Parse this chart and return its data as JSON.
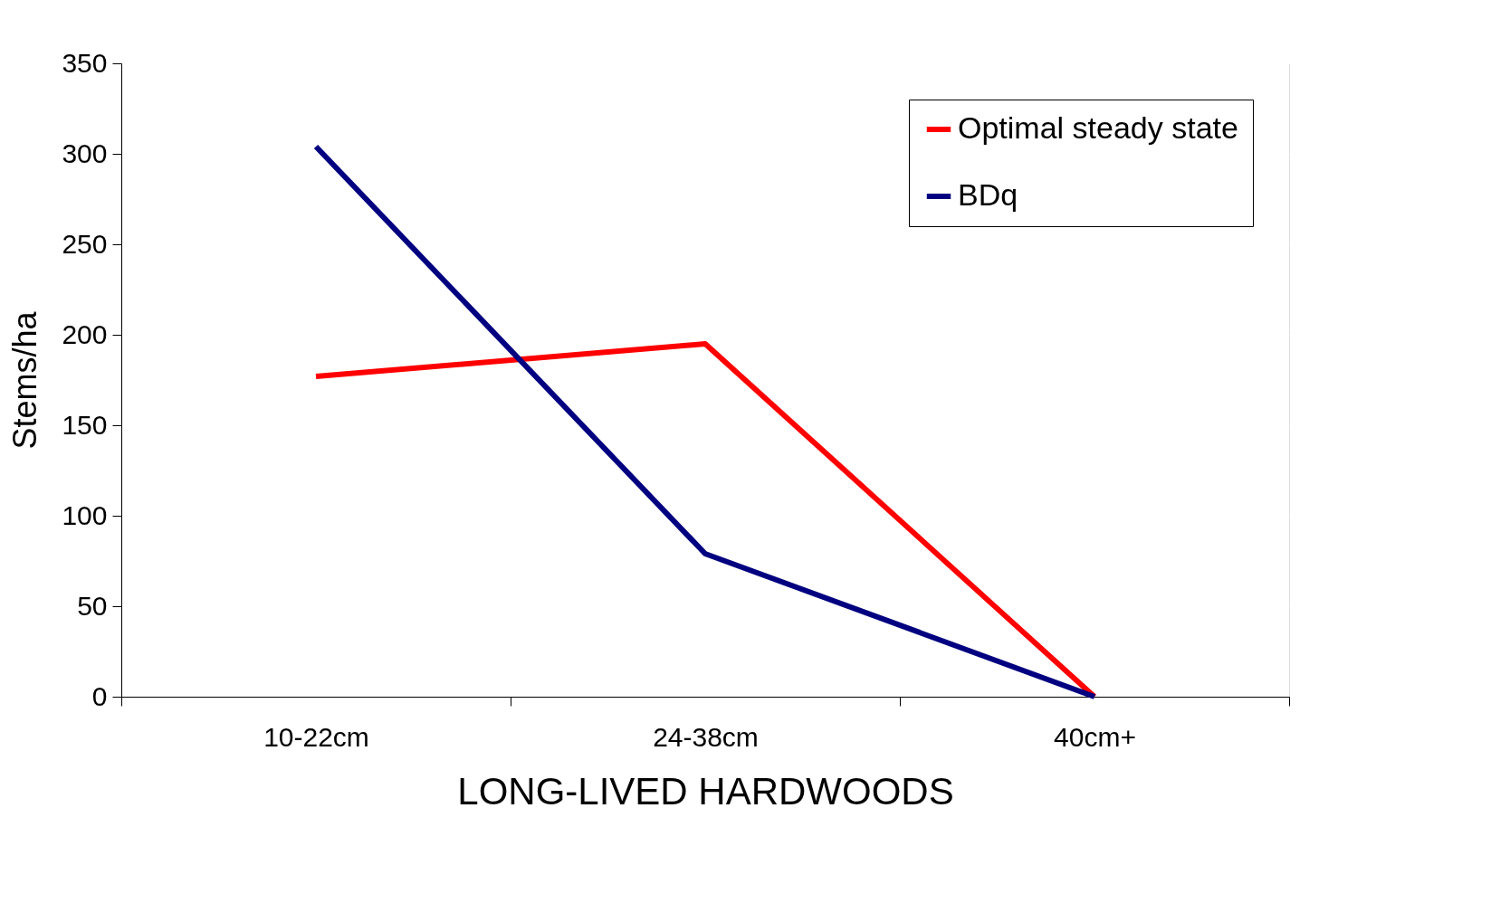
{
  "chart_data": {
    "type": "line",
    "xlabel": "LONG-LIVED HARDWOODS",
    "ylabel": "Stems/ha",
    "categories": [
      "10-22cm",
      "24-38cm",
      "40cm+"
    ],
    "series": [
      {
        "name": "Optimal steady state",
        "color": "#ff0000",
        "values": [
          177,
          195,
          0
        ]
      },
      {
        "name": "BDq",
        "color": "#000080",
        "values": [
          304,
          79,
          0
        ]
      }
    ],
    "ylim": [
      0,
      350
    ],
    "yticks": [
      0,
      50,
      100,
      150,
      200,
      250,
      300,
      350
    ],
    "grid": "y",
    "legend": "top right",
    "marker": "none",
    "line_style": "solid"
  }
}
